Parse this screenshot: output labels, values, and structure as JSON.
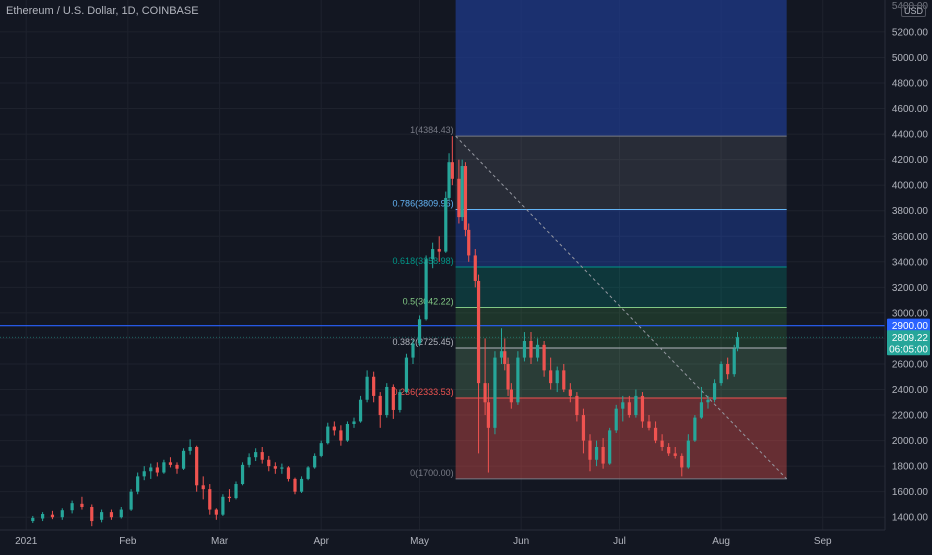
{
  "header": {
    "symbol_line": "Ethereum / U.S. Dollar, 1D, COINBASE",
    "currency": "USD"
  },
  "colors": {
    "background": "#131722",
    "up": "#26a69a",
    "down": "#ef5350",
    "axis_text": "#b2b5be",
    "hline": "#2962ff",
    "last_price_bg": "#26a69a",
    "hline_label_bg": "#2962ff"
  },
  "price_labels": {
    "hline_price": "2900.00",
    "last_price": "2809.22",
    "countdown": "06:05:00",
    "top_cut": "5400.00"
  },
  "chart_data": {
    "type": "candlestick",
    "title": "Ethereum / U.S. Dollar, 1D, COINBASE",
    "xlabel": "",
    "ylabel": "",
    "x_ticks": [
      "2021",
      "Feb",
      "Mar",
      "Apr",
      "May",
      "Jun",
      "Jul",
      "Aug",
      "Sep"
    ],
    "y_ticks": [
      1400,
      1600,
      1800,
      2000,
      2200,
      2400,
      2600,
      2800,
      3000,
      3200,
      3400,
      3600,
      3800,
      4000,
      4200,
      4400,
      4600,
      4800,
      5000,
      5200
    ],
    "y_tick_labels": [
      "1400.00",
      "1600.00",
      "1800.00",
      "2000.00",
      "2200.00",
      "2400.00",
      "2600.00",
      "2800.00",
      "3000.00",
      "3200.00",
      "3400.00",
      "3600.00",
      "3800.00",
      "4000.00",
      "4200.00",
      "4400.00",
      "4600.00",
      "4800.00",
      "5000.00",
      "5200.00"
    ],
    "ylim": [
      1300,
      5450
    ],
    "x_range": [
      "2020-12-24",
      "2021-09-20"
    ],
    "grid": true,
    "horizontal_line": 2900,
    "last_price": 2809.22,
    "fibonacci": {
      "levels": [
        {
          "ratio": "1",
          "price": 4384.43,
          "label": "1(4384.43)",
          "color": "#787b86"
        },
        {
          "ratio": "0.786",
          "price": 3809.96,
          "label": "0.786(3809.96)",
          "color": "#64b5f6"
        },
        {
          "ratio": "0.618",
          "price": 3358.98,
          "label": "0.618(3358.98)",
          "color": "#009688"
        },
        {
          "ratio": "0.5",
          "price": 3042.22,
          "label": "0.5(3042.22)",
          "color": "#81c784"
        },
        {
          "ratio": "0.382",
          "price": 2725.45,
          "label": "0.382(2725.45)",
          "color": "#b2b5be"
        },
        {
          "ratio": "0.236",
          "price": 2333.53,
          "label": "0.236(2333.53)",
          "color": "#ef5350"
        },
        {
          "ratio": "0",
          "price": 1700.0,
          "label": "0(1700.00)",
          "color": "#787b86"
        }
      ],
      "start_date": "2021-05-12",
      "end_date": "2021-08-21"
    },
    "candles": [
      {
        "date": "2021-01-03",
        "o": 1370,
        "h": 1410,
        "l": 1355,
        "c": 1395
      },
      {
        "date": "2021-01-06",
        "o": 1390,
        "h": 1440,
        "l": 1370,
        "c": 1425
      },
      {
        "date": "2021-01-09",
        "o": 1420,
        "h": 1450,
        "l": 1385,
        "c": 1400
      },
      {
        "date": "2021-01-12",
        "o": 1400,
        "h": 1470,
        "l": 1380,
        "c": 1455
      },
      {
        "date": "2021-01-15",
        "o": 1455,
        "h": 1530,
        "l": 1430,
        "c": 1510
      },
      {
        "date": "2021-01-18",
        "o": 1505,
        "h": 1560,
        "l": 1460,
        "c": 1480
      },
      {
        "date": "2021-01-21",
        "o": 1480,
        "h": 1500,
        "l": 1330,
        "c": 1370
      },
      {
        "date": "2021-01-24",
        "o": 1380,
        "h": 1460,
        "l": 1360,
        "c": 1440
      },
      {
        "date": "2021-01-27",
        "o": 1440,
        "h": 1460,
        "l": 1380,
        "c": 1400
      },
      {
        "date": "2021-01-30",
        "o": 1400,
        "h": 1480,
        "l": 1390,
        "c": 1460
      },
      {
        "date": "2021-02-02",
        "o": 1460,
        "h": 1620,
        "l": 1450,
        "c": 1600
      },
      {
        "date": "2021-02-04",
        "o": 1600,
        "h": 1750,
        "l": 1580,
        "c": 1720
      },
      {
        "date": "2021-02-06",
        "o": 1720,
        "h": 1800,
        "l": 1690,
        "c": 1760
      },
      {
        "date": "2021-02-08",
        "o": 1760,
        "h": 1820,
        "l": 1700,
        "c": 1790
      },
      {
        "date": "2021-02-10",
        "o": 1790,
        "h": 1830,
        "l": 1720,
        "c": 1750
      },
      {
        "date": "2021-02-12",
        "o": 1750,
        "h": 1850,
        "l": 1740,
        "c": 1830
      },
      {
        "date": "2021-02-14",
        "o": 1830,
        "h": 1870,
        "l": 1790,
        "c": 1810
      },
      {
        "date": "2021-02-16",
        "o": 1810,
        "h": 1830,
        "l": 1740,
        "c": 1780
      },
      {
        "date": "2021-02-18",
        "o": 1780,
        "h": 1940,
        "l": 1770,
        "c": 1920
      },
      {
        "date": "2021-02-20",
        "o": 1920,
        "h": 2010,
        "l": 1890,
        "c": 1950
      },
      {
        "date": "2021-02-22",
        "o": 1950,
        "h": 1960,
        "l": 1600,
        "c": 1650
      },
      {
        "date": "2021-02-24",
        "o": 1650,
        "h": 1720,
        "l": 1540,
        "c": 1620
      },
      {
        "date": "2021-02-26",
        "o": 1620,
        "h": 1660,
        "l": 1420,
        "c": 1460
      },
      {
        "date": "2021-02-28",
        "o": 1460,
        "h": 1470,
        "l": 1380,
        "c": 1420
      },
      {
        "date": "2021-03-02",
        "o": 1420,
        "h": 1580,
        "l": 1410,
        "c": 1560
      },
      {
        "date": "2021-03-04",
        "o": 1560,
        "h": 1620,
        "l": 1520,
        "c": 1550
      },
      {
        "date": "2021-03-06",
        "o": 1550,
        "h": 1680,
        "l": 1540,
        "c": 1660
      },
      {
        "date": "2021-03-08",
        "o": 1660,
        "h": 1830,
        "l": 1650,
        "c": 1810
      },
      {
        "date": "2021-03-10",
        "o": 1810,
        "h": 1900,
        "l": 1790,
        "c": 1870
      },
      {
        "date": "2021-03-12",
        "o": 1870,
        "h": 1940,
        "l": 1840,
        "c": 1910
      },
      {
        "date": "2021-03-14",
        "o": 1910,
        "h": 1950,
        "l": 1820,
        "c": 1850
      },
      {
        "date": "2021-03-16",
        "o": 1850,
        "h": 1880,
        "l": 1760,
        "c": 1800
      },
      {
        "date": "2021-03-18",
        "o": 1800,
        "h": 1830,
        "l": 1740,
        "c": 1780
      },
      {
        "date": "2021-03-20",
        "o": 1780,
        "h": 1820,
        "l": 1740,
        "c": 1790
      },
      {
        "date": "2021-03-22",
        "o": 1790,
        "h": 1800,
        "l": 1680,
        "c": 1700
      },
      {
        "date": "2021-03-24",
        "o": 1700,
        "h": 1710,
        "l": 1580,
        "c": 1600
      },
      {
        "date": "2021-03-26",
        "o": 1600,
        "h": 1720,
        "l": 1590,
        "c": 1700
      },
      {
        "date": "2021-03-28",
        "o": 1700,
        "h": 1800,
        "l": 1690,
        "c": 1790
      },
      {
        "date": "2021-03-30",
        "o": 1790,
        "h": 1900,
        "l": 1780,
        "c": 1880
      },
      {
        "date": "2021-04-01",
        "o": 1880,
        "h": 2000,
        "l": 1870,
        "c": 1980
      },
      {
        "date": "2021-04-03",
        "o": 1980,
        "h": 2140,
        "l": 1970,
        "c": 2110
      },
      {
        "date": "2021-04-05",
        "o": 2110,
        "h": 2150,
        "l": 2040,
        "c": 2080
      },
      {
        "date": "2021-04-07",
        "o": 2080,
        "h": 2120,
        "l": 1960,
        "c": 2000
      },
      {
        "date": "2021-04-09",
        "o": 2000,
        "h": 2150,
        "l": 1990,
        "c": 2130
      },
      {
        "date": "2021-04-11",
        "o": 2130,
        "h": 2180,
        "l": 2100,
        "c": 2150
      },
      {
        "date": "2021-04-13",
        "o": 2150,
        "h": 2350,
        "l": 2140,
        "c": 2320
      },
      {
        "date": "2021-04-15",
        "o": 2320,
        "h": 2550,
        "l": 2300,
        "c": 2500
      },
      {
        "date": "2021-04-17",
        "o": 2500,
        "h": 2540,
        "l": 2300,
        "c": 2350
      },
      {
        "date": "2021-04-19",
        "o": 2350,
        "h": 2380,
        "l": 2100,
        "c": 2200
      },
      {
        "date": "2021-04-21",
        "o": 2200,
        "h": 2450,
        "l": 2180,
        "c": 2420
      },
      {
        "date": "2021-04-23",
        "o": 2420,
        "h": 2440,
        "l": 2170,
        "c": 2240
      },
      {
        "date": "2021-04-25",
        "o": 2240,
        "h": 2400,
        "l": 2220,
        "c": 2380
      },
      {
        "date": "2021-04-27",
        "o": 2380,
        "h": 2680,
        "l": 2370,
        "c": 2650
      },
      {
        "date": "2021-04-29",
        "o": 2650,
        "h": 2790,
        "l": 2600,
        "c": 2760
      },
      {
        "date": "2021-05-01",
        "o": 2760,
        "h": 2980,
        "l": 2740,
        "c": 2950
      },
      {
        "date": "2021-05-03",
        "o": 2950,
        "h": 3450,
        "l": 2940,
        "c": 3420
      },
      {
        "date": "2021-05-05",
        "o": 3420,
        "h": 3550,
        "l": 3350,
        "c": 3500
      },
      {
        "date": "2021-05-07",
        "o": 3500,
        "h": 3600,
        "l": 3400,
        "c": 3480
      },
      {
        "date": "2021-05-09",
        "o": 3480,
        "h": 3950,
        "l": 3470,
        "c": 3900
      },
      {
        "date": "2021-05-10",
        "o": 3900,
        "h": 4250,
        "l": 3880,
        "c": 4180
      },
      {
        "date": "2021-05-11",
        "o": 4180,
        "h": 4384,
        "l": 4000,
        "c": 4050
      },
      {
        "date": "2021-05-13",
        "o": 4050,
        "h": 4200,
        "l": 3700,
        "c": 3750
      },
      {
        "date": "2021-05-14",
        "o": 3750,
        "h": 4200,
        "l": 3720,
        "c": 4150
      },
      {
        "date": "2021-05-15",
        "o": 4150,
        "h": 4180,
        "l": 3600,
        "c": 3650
      },
      {
        "date": "2021-05-16",
        "o": 3650,
        "h": 3700,
        "l": 3400,
        "c": 3450
      },
      {
        "date": "2021-05-18",
        "o": 3450,
        "h": 3500,
        "l": 3200,
        "c": 3250
      },
      {
        "date": "2021-05-19",
        "o": 3250,
        "h": 3300,
        "l": 1900,
        "c": 2450
      },
      {
        "date": "2021-05-21",
        "o": 2450,
        "h": 2800,
        "l": 2200,
        "c": 2300
      },
      {
        "date": "2021-05-22",
        "o": 2300,
        "h": 2450,
        "l": 1750,
        "c": 2100
      },
      {
        "date": "2021-05-24",
        "o": 2100,
        "h": 2700,
        "l": 2050,
        "c": 2650
      },
      {
        "date": "2021-05-26",
        "o": 2650,
        "h": 2880,
        "l": 2600,
        "c": 2700
      },
      {
        "date": "2021-05-27",
        "o": 2700,
        "h": 2800,
        "l": 2550,
        "c": 2600
      },
      {
        "date": "2021-05-28",
        "o": 2600,
        "h": 2650,
        "l": 2350,
        "c": 2400
      },
      {
        "date": "2021-05-29",
        "o": 2400,
        "h": 2450,
        "l": 2250,
        "c": 2300
      },
      {
        "date": "2021-05-31",
        "o": 2300,
        "h": 2700,
        "l": 2280,
        "c": 2650
      },
      {
        "date": "2021-06-02",
        "o": 2650,
        "h": 2850,
        "l": 2620,
        "c": 2780
      },
      {
        "date": "2021-06-04",
        "o": 2780,
        "h": 2850,
        "l": 2600,
        "c": 2650
      },
      {
        "date": "2021-06-06",
        "o": 2650,
        "h": 2800,
        "l": 2620,
        "c": 2750
      },
      {
        "date": "2021-06-08",
        "o": 2750,
        "h": 2780,
        "l": 2500,
        "c": 2550
      },
      {
        "date": "2021-06-10",
        "o": 2550,
        "h": 2650,
        "l": 2400,
        "c": 2450
      },
      {
        "date": "2021-06-12",
        "o": 2450,
        "h": 2580,
        "l": 2380,
        "c": 2550
      },
      {
        "date": "2021-06-14",
        "o": 2550,
        "h": 2600,
        "l": 2380,
        "c": 2400
      },
      {
        "date": "2021-06-16",
        "o": 2400,
        "h": 2450,
        "l": 2300,
        "c": 2350
      },
      {
        "date": "2021-06-18",
        "o": 2350,
        "h": 2380,
        "l": 2150,
        "c": 2200
      },
      {
        "date": "2021-06-20",
        "o": 2200,
        "h": 2250,
        "l": 1900,
        "c": 2000
      },
      {
        "date": "2021-06-22",
        "o": 2000,
        "h": 2050,
        "l": 1760,
        "c": 1850
      },
      {
        "date": "2021-06-24",
        "o": 1850,
        "h": 2000,
        "l": 1800,
        "c": 1950
      },
      {
        "date": "2021-06-26",
        "o": 1950,
        "h": 2020,
        "l": 1780,
        "c": 1820
      },
      {
        "date": "2021-06-28",
        "o": 1820,
        "h": 2100,
        "l": 1810,
        "c": 2080
      },
      {
        "date": "2021-06-30",
        "o": 2080,
        "h": 2280,
        "l": 2060,
        "c": 2250
      },
      {
        "date": "2021-07-02",
        "o": 2250,
        "h": 2350,
        "l": 2150,
        "c": 2300
      },
      {
        "date": "2021-07-04",
        "o": 2300,
        "h": 2350,
        "l": 2180,
        "c": 2200
      },
      {
        "date": "2021-07-06",
        "o": 2200,
        "h": 2400,
        "l": 2180,
        "c": 2350
      },
      {
        "date": "2021-07-08",
        "o": 2350,
        "h": 2380,
        "l": 2100,
        "c": 2150
      },
      {
        "date": "2021-07-10",
        "o": 2150,
        "h": 2200,
        "l": 2080,
        "c": 2100
      },
      {
        "date": "2021-07-12",
        "o": 2100,
        "h": 2150,
        "l": 1980,
        "c": 2000
      },
      {
        "date": "2021-07-14",
        "o": 2000,
        "h": 2050,
        "l": 1920,
        "c": 1950
      },
      {
        "date": "2021-07-16",
        "o": 1950,
        "h": 1980,
        "l": 1880,
        "c": 1900
      },
      {
        "date": "2021-07-18",
        "o": 1900,
        "h": 1950,
        "l": 1860,
        "c": 1880
      },
      {
        "date": "2021-07-20",
        "o": 1880,
        "h": 1900,
        "l": 1720,
        "c": 1790
      },
      {
        "date": "2021-07-22",
        "o": 1790,
        "h": 2050,
        "l": 1780,
        "c": 2000
      },
      {
        "date": "2021-07-24",
        "o": 2000,
        "h": 2200,
        "l": 1990,
        "c": 2180
      },
      {
        "date": "2021-07-26",
        "o": 2180,
        "h": 2420,
        "l": 2170,
        "c": 2300
      },
      {
        "date": "2021-07-28",
        "o": 2300,
        "h": 2350,
        "l": 2250,
        "c": 2320
      },
      {
        "date": "2021-07-30",
        "o": 2320,
        "h": 2480,
        "l": 2300,
        "c": 2450
      },
      {
        "date": "2021-08-01",
        "o": 2450,
        "h": 2620,
        "l": 2430,
        "c": 2600
      },
      {
        "date": "2021-08-03",
        "o": 2600,
        "h": 2650,
        "l": 2480,
        "c": 2520
      },
      {
        "date": "2021-08-05",
        "o": 2520,
        "h": 2750,
        "l": 2500,
        "c": 2720
      },
      {
        "date": "2021-08-06",
        "o": 2720,
        "h": 2850,
        "l": 2700,
        "c": 2809.22
      }
    ]
  }
}
